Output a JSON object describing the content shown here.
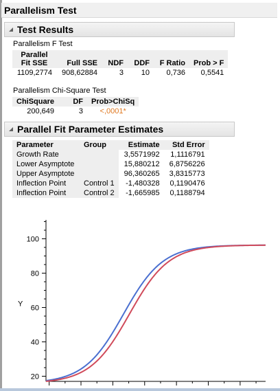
{
  "window": {
    "title": "Parallelism Test"
  },
  "test_results": {
    "title": "Test Results",
    "f_test": {
      "title": "Parallelism F Test",
      "headers": [
        "Parallel Fit SSE",
        "Full SSE",
        "NDF",
        "DDF",
        "F Ratio",
        "Prob > F"
      ],
      "header_parallel_1": "Parallel",
      "header_parallel_2": "Fit SSE",
      "row": [
        "1109,2774",
        "908,62884",
        "3",
        "10",
        "0,736",
        "0,5541"
      ]
    },
    "chi_test": {
      "title": "Parallelism Chi-Square Test",
      "headers": [
        "ChiSquare",
        "DF",
        "Prob>ChiSq"
      ],
      "row": [
        "200,649",
        "3",
        "<,0001*"
      ]
    }
  },
  "estimates": {
    "title": "Parallel Fit Parameter Estimates",
    "headers": [
      "Parameter",
      "Group",
      "Estimate",
      "Std Error"
    ],
    "rows": [
      [
        "Growth Rate",
        "",
        "3,5571992",
        "1,1116791"
      ],
      [
        "Lower Asymptote",
        "",
        "15,880212",
        "6,8756226"
      ],
      [
        "Upper Asymptote",
        "",
        "96,360265",
        "3,8315773"
      ],
      [
        "Inflection Point",
        "Control 1",
        "-1,480328",
        "0,1190476"
      ],
      [
        "Inflection Point",
        "Control 2",
        "-1,665985",
        "0,1188794"
      ]
    ]
  },
  "chart_data": {
    "type": "line",
    "title": "",
    "xlabel": "",
    "ylabel": "Y",
    "ylim": [
      17,
      111
    ],
    "xlim": [
      -4.1,
      2.8
    ],
    "yticks": [
      20,
      40,
      60,
      80,
      100
    ],
    "grid": false,
    "series": [
      {
        "color": "#4a6fd0",
        "lower": 15.880212,
        "upper": 96.360265,
        "growth": 3.5571992,
        "inflection": -1.665985
      },
      {
        "color": "#d04a5a",
        "lower": 15.880212,
        "upper": 96.360265,
        "growth": 3.5571992,
        "inflection": -1.480328
      }
    ]
  }
}
